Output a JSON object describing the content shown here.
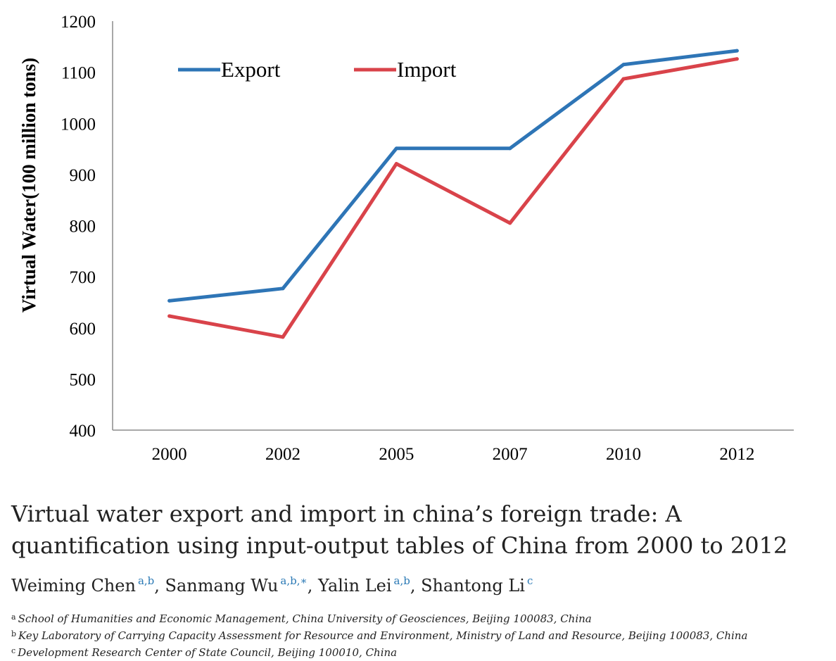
{
  "chart_data": {
    "type": "line",
    "categories": [
      "2000",
      "2002",
      "2005",
      "2007",
      "2010",
      "2012"
    ],
    "series": [
      {
        "name": "Export",
        "color": "#2e75b6",
        "values": [
          653,
          677,
          951,
          951,
          1115,
          1142
        ]
      },
      {
        "name": "Import",
        "color": "#d9434a",
        "values": [
          623,
          582,
          921,
          805,
          1087,
          1126
        ]
      }
    ],
    "title": "",
    "xlabel": "",
    "ylabel": "Virtual Water(100 million tons)",
    "ylim": [
      400,
      1200
    ],
    "yticks": [
      "400",
      "500",
      "600",
      "700",
      "800",
      "900",
      "1000",
      "1100",
      "1200"
    ],
    "legend_position": "top-left",
    "grid": false
  },
  "paper": {
    "title": "Virtual water export and import in china’s foreign trade: A quantification using input-output tables of China from 2000 to 2012",
    "authors": [
      {
        "name": "Weiming Chen",
        "marks": "a,b",
        "sep": ", "
      },
      {
        "name": "Sanmang Wu",
        "marks": "a,b,∗",
        "sep": ", "
      },
      {
        "name": "Yalin Lei",
        "marks": "a,b",
        "sep": ", "
      },
      {
        "name": "Shantong Li",
        "marks": "c",
        "sep": ""
      }
    ],
    "affiliations": [
      {
        "mark": "a",
        "text": "School of Humanities and Economic Management, China University of Geosciences, Beijing 100083, China"
      },
      {
        "mark": "b",
        "text": "Key Laboratory of Carrying Capacity Assessment for Resource and Environment, Ministry of Land and Resource, Beijing 100083, China"
      },
      {
        "mark": "c",
        "text": "Development Research Center of State Council, Beijing 100010, China"
      }
    ]
  }
}
